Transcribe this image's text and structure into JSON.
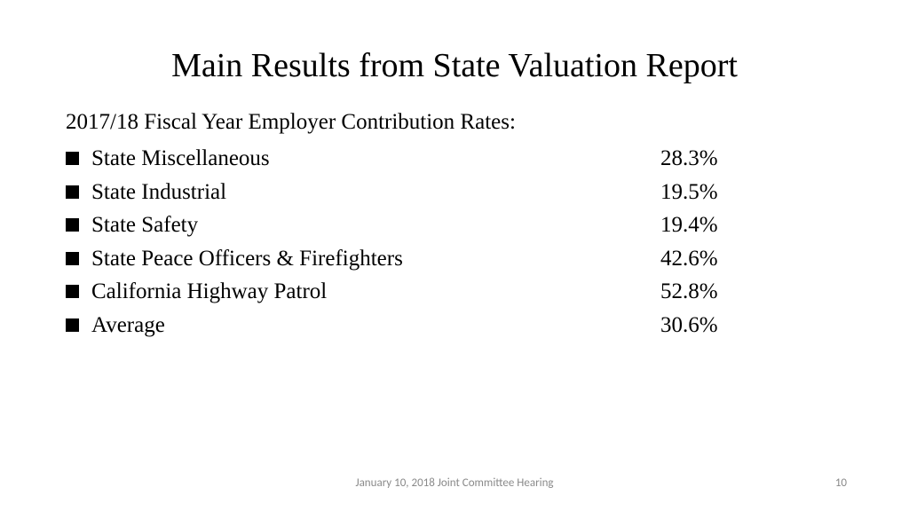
{
  "title": "Main Results from State Valuation Report",
  "subtitle": "2017/18 Fiscal Year Employer Contribution Rates:",
  "rows": [
    {
      "label": "State Miscellaneous",
      "value": "28.3%"
    },
    {
      "label": "State Industrial",
      "value": "19.5%"
    },
    {
      "label": "State Safety",
      "value": "19.4%"
    },
    {
      "label": "State Peace Officers & Firefighters",
      "value": "42.6%"
    },
    {
      "label": "California Highway Patrol",
      "value": "52.8%"
    },
    {
      "label": "Average",
      "value": "30.6%"
    }
  ],
  "footer": {
    "text": "January 10, 2018 Joint Committee Hearing",
    "page": "10"
  },
  "colors": {
    "background": "#ffffff",
    "text": "#000000",
    "footer_text": "#8a8a8a"
  },
  "typography": {
    "title_fontsize": 38,
    "body_fontsize": 25,
    "footer_fontsize": 13,
    "font_family": "Times New Roman"
  }
}
